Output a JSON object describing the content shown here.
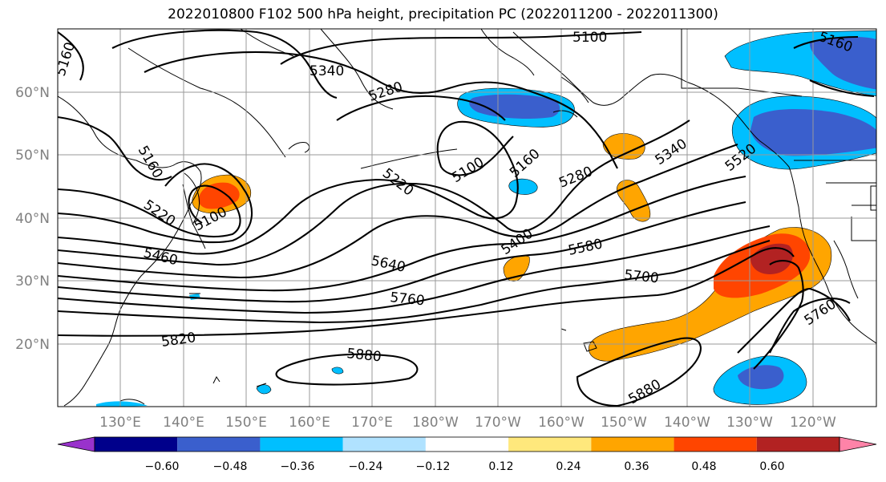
{
  "title": "2022010800 F102 500 hPa height, precipitation PC (2022011200 - 2022011300)",
  "map": {
    "lat_ticks": [
      "20°N",
      "30°N",
      "40°N",
      "50°N",
      "60°N"
    ],
    "lon_ticks": [
      "130°E",
      "140°E",
      "150°E",
      "160°E",
      "170°E",
      "180°W",
      "170°W",
      "160°W",
      "150°W",
      "140°W",
      "130°W",
      "120°W"
    ]
  },
  "contours": [
    {
      "id": "c5100",
      "label": "5100"
    },
    {
      "id": "c5160",
      "label": "5160"
    },
    {
      "id": "c5220",
      "label": "5220"
    },
    {
      "id": "c5280",
      "label": "5280"
    },
    {
      "id": "c5340",
      "label": "5340"
    },
    {
      "id": "c5400",
      "label": "5400"
    },
    {
      "id": "c5460",
      "label": "5460"
    },
    {
      "id": "c5520",
      "label": "5520"
    },
    {
      "id": "c5580",
      "label": "5580"
    },
    {
      "id": "c5640",
      "label": "5640"
    },
    {
      "id": "c5700",
      "label": "5700"
    },
    {
      "id": "c5760",
      "label": "5760"
    },
    {
      "id": "c5820",
      "label": "5820"
    },
    {
      "id": "c5880",
      "label": "5880"
    }
  ],
  "colorbar": {
    "ticks": [
      "−0.60",
      "−0.48",
      "−0.36",
      "−0.24",
      "−0.12",
      "0.12",
      "0.24",
      "0.36",
      "0.48",
      "0.60"
    ],
    "colors": [
      "#9932cc",
      "#00008b",
      "#3a5fcd",
      "#00bfff",
      "#b0e2ff",
      "#ffffff",
      "#ffe87c",
      "#ffa500",
      "#ff4500",
      "#b22222",
      "#ff83a8"
    ]
  }
}
